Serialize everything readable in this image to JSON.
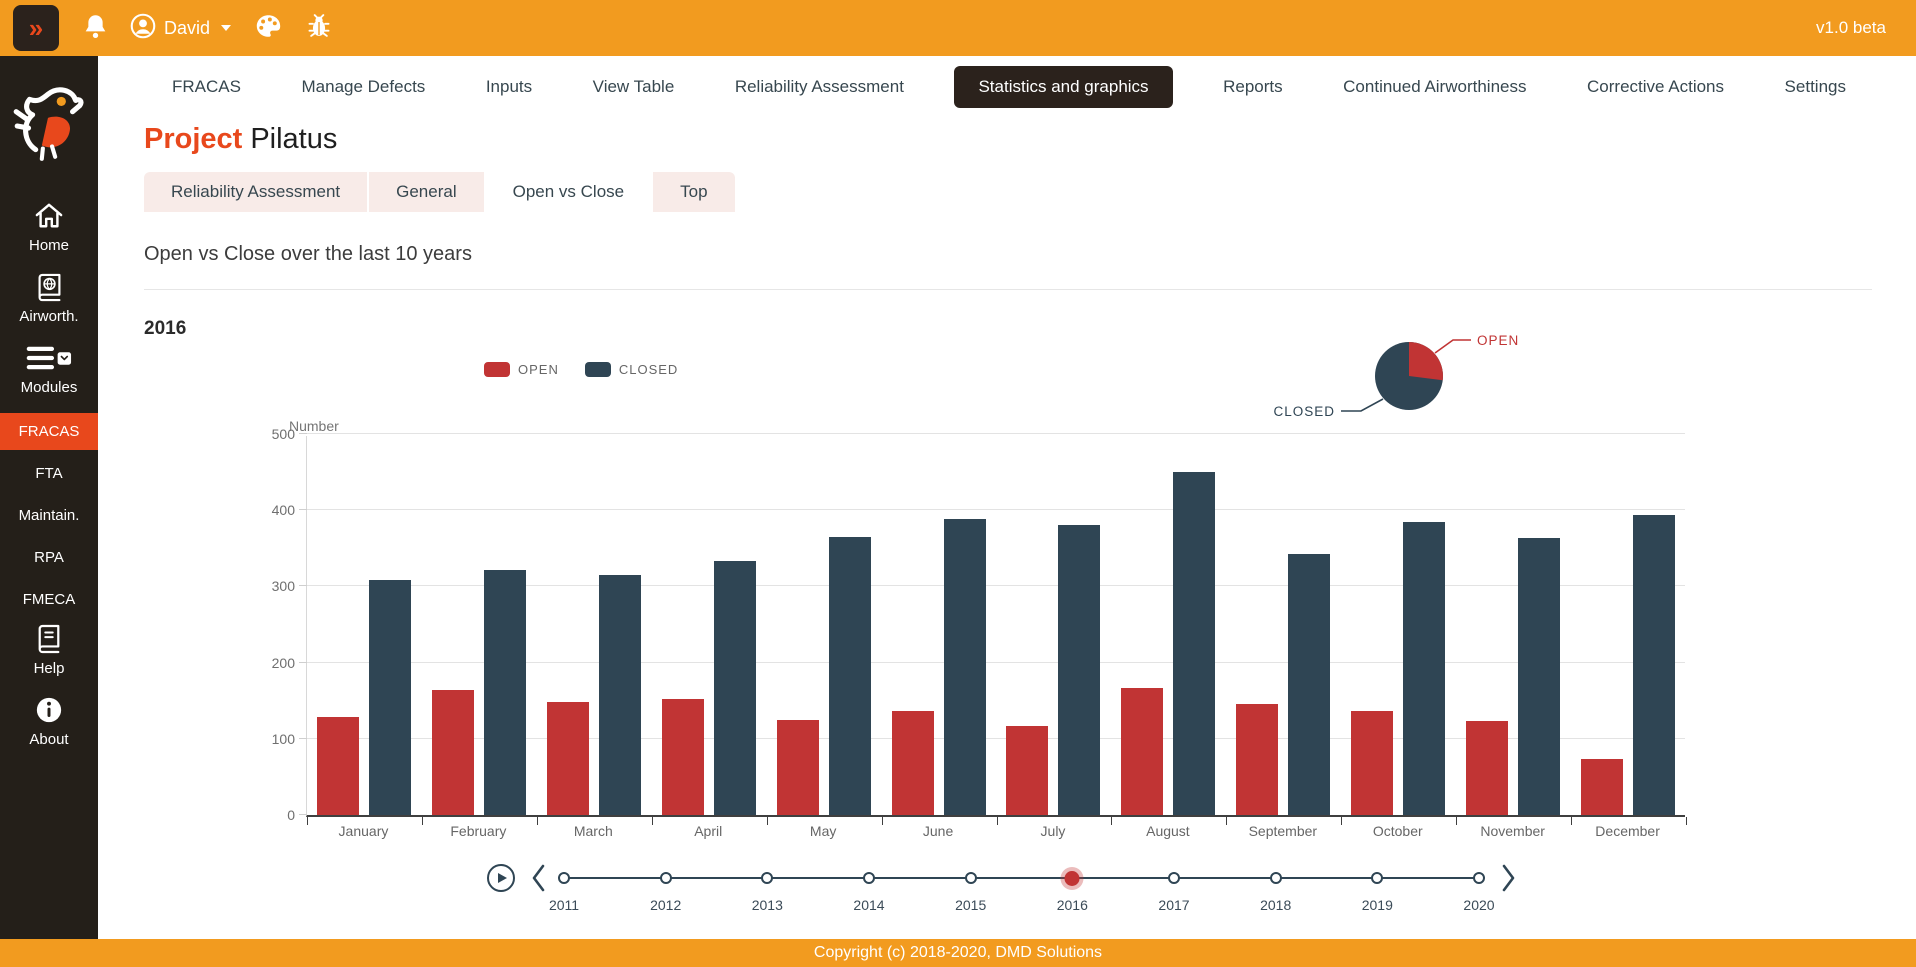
{
  "topbar": {
    "collapse_glyph": "»",
    "user": "David",
    "version": "v1.0 beta"
  },
  "sidebar": {
    "items": [
      {
        "id": "home",
        "label": "Home",
        "icon": "home-icon"
      },
      {
        "id": "airworthiness",
        "label": "Airworth.",
        "icon": "book-globe-icon"
      },
      {
        "id": "modules",
        "label": "Modules",
        "icon": "menu-icon"
      },
      {
        "id": "fracas",
        "label": "FRACAS",
        "active": true
      },
      {
        "id": "fta",
        "label": "FTA"
      },
      {
        "id": "maintain",
        "label": "Maintain."
      },
      {
        "id": "rpa",
        "label": "RPA"
      },
      {
        "id": "fmeca",
        "label": "FMECA"
      },
      {
        "id": "help",
        "label": "Help",
        "icon": "book-icon"
      },
      {
        "id": "about",
        "label": "About",
        "icon": "info-icon"
      }
    ]
  },
  "nav": {
    "items": [
      {
        "label": "FRACAS"
      },
      {
        "label": "Manage Defects"
      },
      {
        "label": "Inputs"
      },
      {
        "label": "View Table"
      },
      {
        "label": "Reliability Assessment"
      },
      {
        "label": "Statistics and graphics"
      },
      {
        "label": "Reports"
      },
      {
        "label": "Continued Airworthiness"
      },
      {
        "label": "Corrective Actions"
      },
      {
        "label": "Settings"
      }
    ],
    "active": "Statistics and graphics"
  },
  "page": {
    "title_accent": "Project",
    "title_rest": "Pilatus"
  },
  "tabs": [
    {
      "label": "Reliability Assessment"
    },
    {
      "label": "General"
    },
    {
      "label": "Open vs Close",
      "active": true
    },
    {
      "label": "Top"
    }
  ],
  "section": {
    "heading": "Open vs Close over the last 10 years"
  },
  "chart_data": {
    "type": "bar",
    "title": "Open vs Close over the last 10 years",
    "subtitle_year": "2016",
    "categories": [
      "January",
      "February",
      "March",
      "April",
      "May",
      "June",
      "July",
      "August",
      "September",
      "October",
      "November",
      "December"
    ],
    "series": [
      {
        "name": "OPEN",
        "color": "#c13434",
        "values": [
          128,
          164,
          148,
          152,
          125,
          137,
          117,
          167,
          146,
          136,
          124,
          73
        ]
      },
      {
        "name": "CLOSED",
        "color": "#2f4554",
        "values": [
          308,
          321,
          315,
          333,
          365,
          388,
          381,
          450,
          342,
          384,
          364,
          394
        ]
      }
    ],
    "xlabel": "",
    "ylabel": "Number",
    "ylim": [
      0,
      500
    ],
    "yticks": [
      0,
      100,
      200,
      300,
      400,
      500
    ],
    "grid": true,
    "legend_position": "top-left",
    "pie_summary": {
      "open_label": "OPEN",
      "closed_label": "CLOSED",
      "open_fraction": 0.27,
      "closed_fraction": 0.73
    }
  },
  "timeline": {
    "years": [
      "2011",
      "2012",
      "2013",
      "2014",
      "2015",
      "2016",
      "2017",
      "2018",
      "2019",
      "2020"
    ],
    "selected": "2016"
  },
  "footer": {
    "copyright": "Copyright (c) 2018-2020, DMD Solutions"
  },
  "colors": {
    "brand_orange": "#f29b1f",
    "accent_red": "#e8481c",
    "bar_open_red": "#c13434",
    "bar_closed_navy": "#2f4554",
    "sidebar_bg": "#241f19",
    "nav_active_bg": "#2b221c"
  }
}
